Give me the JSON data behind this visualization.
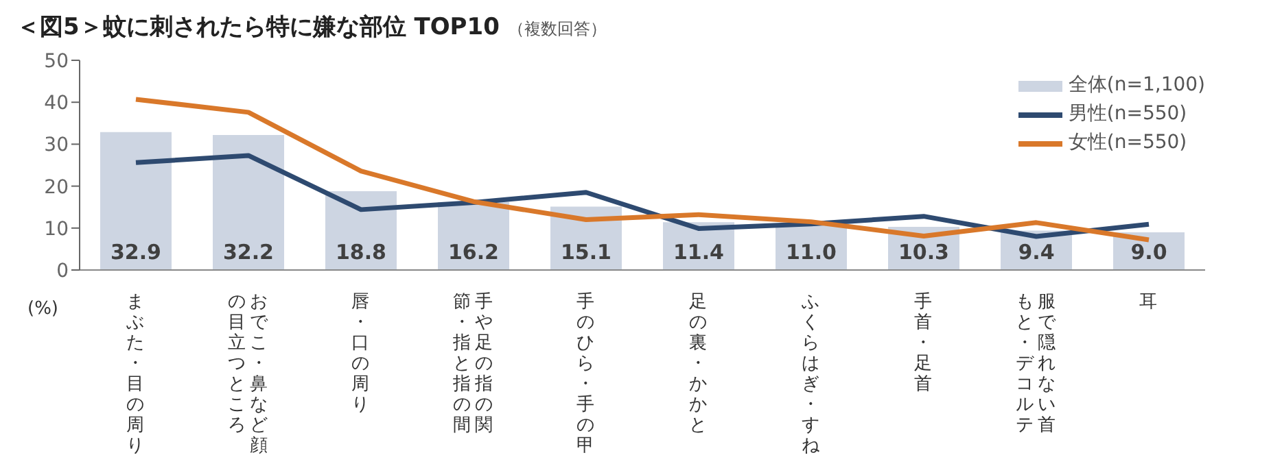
{
  "chart_data": {
    "type": "bar",
    "title": "＜図5＞蚊に刺されたら特に嫌な部位 TOP10",
    "subtitle": "（複数回答）",
    "ylabel": "(%)",
    "categories": [
      "まぶた・目の周り",
      "おでこ・鼻など顔の目立つところ",
      "唇・口の周り",
      "手や足の指の関節・指と指の間",
      "手のひら・手の甲",
      "足の裏・かかと",
      "ふくらはぎ・すね",
      "手首・足首",
      "服で隠れない首もと・デコルテ",
      "耳"
    ],
    "series": [
      {
        "name": "全体(n=1,100)",
        "color": "#cdd5e2",
        "values": [
          32.9,
          32.2,
          18.8,
          16.2,
          15.1,
          11.4,
          11.0,
          10.3,
          9.4,
          9.0
        ]
      },
      {
        "name": "男性(n=550)",
        "type": "line",
        "color": "#2e4a70",
        "values": [
          25.6,
          27.3,
          14.4,
          16.1,
          18.5,
          9.9,
          11.0,
          12.8,
          8.0,
          10.9
        ]
      },
      {
        "name": "女性(n=550)",
        "type": "line",
        "color": "#d9782a",
        "values": [
          40.7,
          37.6,
          23.6,
          16.3,
          12.0,
          13.2,
          11.5,
          8.1,
          11.3,
          7.2
        ]
      }
    ],
    "value_labels": [
      "32.9",
      "32.2",
      "18.8",
      "16.2",
      "15.1",
      "11.4",
      "11.0",
      "10.3",
      "9.4",
      "9.0"
    ],
    "ylim": [
      0,
      50
    ],
    "yticks": [
      0,
      10,
      20,
      30,
      40,
      50
    ],
    "grid": false,
    "legend": "top right",
    "marker": "none",
    "line_style": "solid"
  }
}
